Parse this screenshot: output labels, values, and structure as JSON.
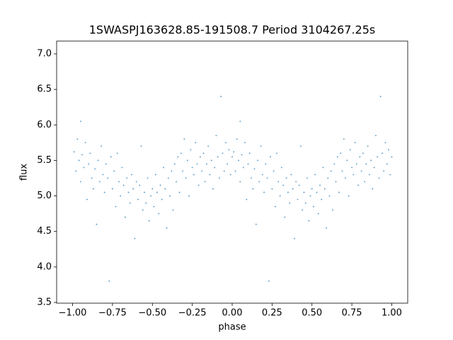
{
  "chart_data": {
    "type": "scatter",
    "title": "1SWASPJ163628.85-191508.7 Period 3104267.25s",
    "x_label": "phase",
    "y_label": "flux",
    "color": "#1f77b4",
    "x": [
      -0.99,
      -0.98,
      -0.97,
      -0.96,
      -0.95,
      -0.95,
      -0.94,
      -0.93,
      -0.92,
      -0.91,
      -0.9,
      -0.89,
      -0.88,
      -0.87,
      -0.86,
      -0.85,
      -0.84,
      -0.83,
      -0.82,
      -0.81,
      -0.8,
      -0.79,
      -0.78,
      -0.77,
      -0.76,
      -0.75,
      -0.74,
      -0.73,
      -0.72,
      -0.71,
      -0.7,
      -0.69,
      -0.68,
      -0.67,
      -0.66,
      -0.65,
      -0.64,
      -0.63,
      -0.62,
      -0.61,
      -0.6,
      -0.59,
      -0.58,
      -0.57,
      -0.56,
      -0.55,
      -0.54,
      -0.53,
      -0.52,
      -0.51,
      -0.5,
      -0.49,
      -0.48,
      -0.47,
      -0.46,
      -0.45,
      -0.44,
      -0.43,
      -0.42,
      -0.41,
      -0.4,
      -0.39,
      -0.38,
      -0.37,
      -0.36,
      -0.35,
      -0.34,
      -0.33,
      -0.32,
      -0.31,
      -0.3,
      -0.29,
      -0.28,
      -0.27,
      -0.26,
      -0.25,
      -0.24,
      -0.23,
      -0.22,
      -0.21,
      -0.2,
      -0.19,
      -0.18,
      -0.17,
      -0.16,
      -0.15,
      -0.14,
      -0.13,
      -0.12,
      -0.11,
      -0.1,
      -0.09,
      -0.08,
      -0.07,
      -0.06,
      -0.05,
      -0.04,
      -0.03,
      -0.02,
      -0.01,
      0,
      0.01,
      0.02,
      0.03,
      0.04,
      0.05,
      0.05,
      0.06,
      0.07,
      0.08,
      0.09,
      0.1,
      0.11,
      0.12,
      0.13,
      0.14,
      0.15,
      0.16,
      0.17,
      0.18,
      0.19,
      0.2,
      0.21,
      0.22,
      0.23,
      0.24,
      0.25,
      0.26,
      0.27,
      0.28,
      0.29,
      0.3,
      0.31,
      0.32,
      0.33,
      0.34,
      0.35,
      0.36,
      0.37,
      0.38,
      0.39,
      0.4,
      0.41,
      0.42,
      0.43,
      0.44,
      0.45,
      0.46,
      0.47,
      0.48,
      0.49,
      0.5,
      0.51,
      0.52,
      0.53,
      0.54,
      0.55,
      0.56,
      0.57,
      0.58,
      0.59,
      0.6,
      0.61,
      0.62,
      0.63,
      0.64,
      0.65,
      0.66,
      0.67,
      0.68,
      0.69,
      0.7,
      0.71,
      0.72,
      0.73,
      0.74,
      0.75,
      0.76,
      0.77,
      0.78,
      0.79,
      0.8,
      0.81,
      0.82,
      0.83,
      0.84,
      0.85,
      0.86,
      0.87,
      0.88,
      0.89,
      0.9,
      0.91,
      0.92,
      0.93,
      0.94,
      0.95,
      0.96,
      0.97,
      0.98,
      0.99,
      1
    ],
    "values": [
      5.62,
      5.35,
      5.8,
      5.5,
      6.05,
      5.2,
      5.58,
      5.4,
      5.75,
      4.95,
      5.45,
      5.6,
      5.25,
      5.1,
      5.38,
      4.6,
      5.5,
      5.2,
      5.7,
      5.3,
      5.05,
      5.45,
      5.25,
      3.8,
      5.55,
      5.1,
      5.35,
      4.85,
      5.6,
      5.2,
      5.0,
      5.4,
      5.15,
      4.7,
      5.25,
      5.05,
      4.9,
      5.3,
      5.1,
      4.4,
      5.2,
      4.95,
      5.15,
      5.7,
      4.8,
      5.05,
      4.9,
      5.25,
      4.65,
      5.0,
      5.1,
      4.85,
      5.3,
      5.05,
      4.75,
      5.15,
      4.95,
      5.4,
      5.1,
      4.55,
      5.25,
      5.0,
      5.35,
      4.8,
      5.45,
      5.2,
      5.55,
      5.05,
      5.6,
      5.35,
      5.8,
      5.25,
      5.5,
      5.0,
      5.65,
      5.4,
      5.3,
      5.75,
      5.45,
      5.15,
      5.55,
      5.35,
      5.6,
      5.2,
      5.45,
      5.7,
      5.3,
      5.5,
      5.1,
      5.4,
      5.85,
      5.55,
      5.25,
      6.4,
      5.6,
      5.35,
      5.75,
      5.45,
      5.65,
      5.3,
      5.55,
      5.62,
      5.35,
      5.8,
      5.5,
      6.05,
      5.2,
      5.58,
      5.4,
      5.75,
      4.95,
      5.45,
      5.6,
      5.25,
      5.1,
      5.38,
      4.6,
      5.5,
      5.2,
      5.7,
      5.3,
      5.05,
      5.45,
      5.25,
      3.8,
      5.55,
      5.1,
      5.35,
      4.85,
      5.6,
      5.2,
      5.0,
      5.4,
      5.15,
      4.7,
      5.25,
      5.05,
      4.9,
      5.3,
      5.1,
      4.4,
      5.2,
      4.95,
      5.15,
      5.7,
      4.8,
      5.05,
      4.9,
      5.25,
      4.65,
      5.0,
      5.1,
      4.85,
      5.3,
      5.05,
      4.75,
      5.15,
      4.95,
      5.4,
      5.1,
      4.55,
      5.25,
      5.0,
      5.35,
      4.8,
      5.45,
      5.2,
      5.55,
      5.05,
      5.6,
      5.35,
      5.8,
      5.25,
      5.5,
      5.0,
      5.65,
      5.4,
      5.3,
      5.75,
      5.45,
      5.15,
      5.55,
      5.35,
      5.6,
      5.2,
      5.45,
      5.7,
      5.3,
      5.5,
      5.1,
      5.4,
      5.85,
      5.55,
      5.25,
      6.4,
      5.6,
      5.35,
      5.75,
      5.45,
      5.65,
      5.3,
      5.55
    ],
    "xlim": [
      -1.1,
      1.1
    ],
    "ylim": [
      3.49,
      7.18
    ],
    "xticks": [
      {
        "value": -1,
        "label": "−1.00"
      },
      {
        "value": -0.75,
        "label": "−0.75"
      },
      {
        "value": -0.5,
        "label": "−0.50"
      },
      {
        "value": -0.25,
        "label": "−0.25"
      },
      {
        "value": 0,
        "label": "0.00"
      },
      {
        "value": 0.25,
        "label": "0.25"
      },
      {
        "value": 0.5,
        "label": "0.50"
      },
      {
        "value": 0.75,
        "label": "0.75"
      },
      {
        "value": 1,
        "label": "1.00"
      }
    ],
    "yticks": [
      3.5,
      {
        "value": 4,
        "label": "4.0"
      },
      4.5,
      {
        "value": 5,
        "label": "5.0"
      },
      5.5,
      {
        "value": 6,
        "label": "6.0"
      },
      6.5,
      {
        "value": 7,
        "label": "7.0"
      }
    ],
    "grid": false
  }
}
